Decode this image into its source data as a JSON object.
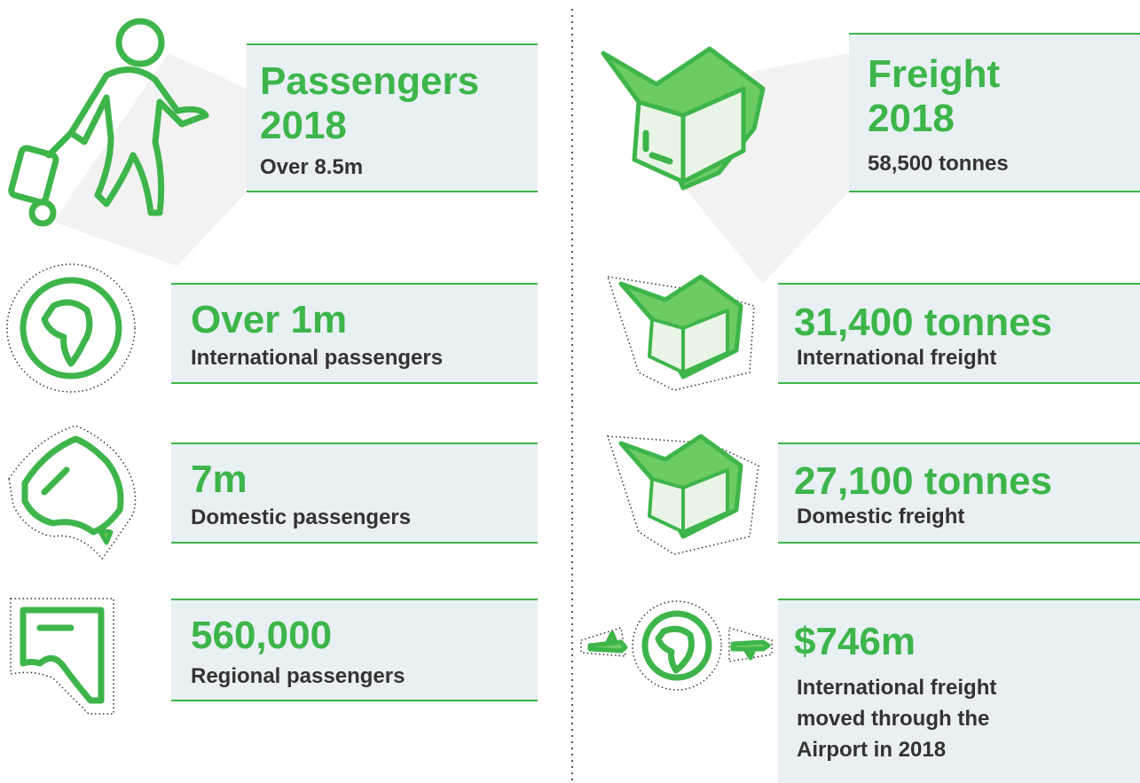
{
  "left": [
    {
      "title": [
        "Passengers",
        "2018"
      ],
      "text": [
        "Over 8.5m"
      ]
    },
    {
      "title": [
        "Over 1m"
      ],
      "text": [
        "International passengers"
      ]
    },
    {
      "title": [
        "7m"
      ],
      "text": [
        "Domestic passengers"
      ]
    },
    {
      "title": [
        "560,000"
      ],
      "text": [
        "Regional passengers"
      ]
    }
  ],
  "right": [
    {
      "title": [
        "Freight",
        "2018"
      ],
      "text": [
        "58,500 tonnes"
      ]
    },
    {
      "title": [
        "31,400 tonnes"
      ],
      "text": [
        "International freight"
      ]
    },
    {
      "title": [
        "27,100 tonnes"
      ],
      "text": [
        "Domestic freight"
      ]
    },
    {
      "title": [
        "$746m"
      ],
      "text": [
        "International freight",
        "moved through the",
        "Airport in 2018"
      ]
    }
  ]
}
